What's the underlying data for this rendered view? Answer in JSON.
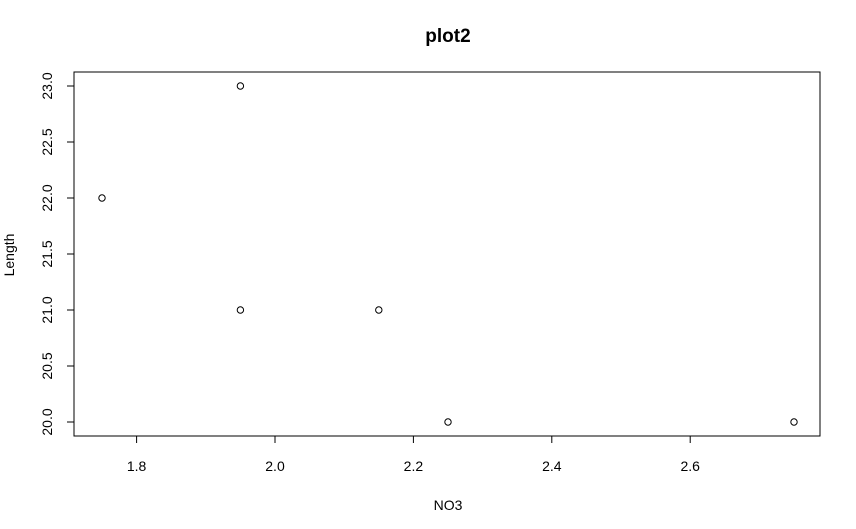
{
  "chart_data": {
    "type": "scatter",
    "title": "plot2",
    "xlabel": "NO3",
    "ylabel": "Length",
    "xlim": [
      1.75,
      2.75
    ],
    "ylim": [
      20.0,
      23.0
    ],
    "x_ticks": [
      "1.8",
      "2.0",
      "2.2",
      "2.4",
      "2.6"
    ],
    "y_ticks": [
      "20.0",
      "20.5",
      "21.0",
      "21.5",
      "22.0",
      "22.5",
      "23.0"
    ],
    "grid": false,
    "series": [
      {
        "points": [
          {
            "x": 1.75,
            "y": 22.0
          },
          {
            "x": 1.95,
            "y": 23.0
          },
          {
            "x": 1.95,
            "y": 21.0
          },
          {
            "x": 2.15,
            "y": 21.0
          },
          {
            "x": 2.25,
            "y": 20.0
          },
          {
            "x": 2.75,
            "y": 20.0
          }
        ]
      }
    ]
  }
}
